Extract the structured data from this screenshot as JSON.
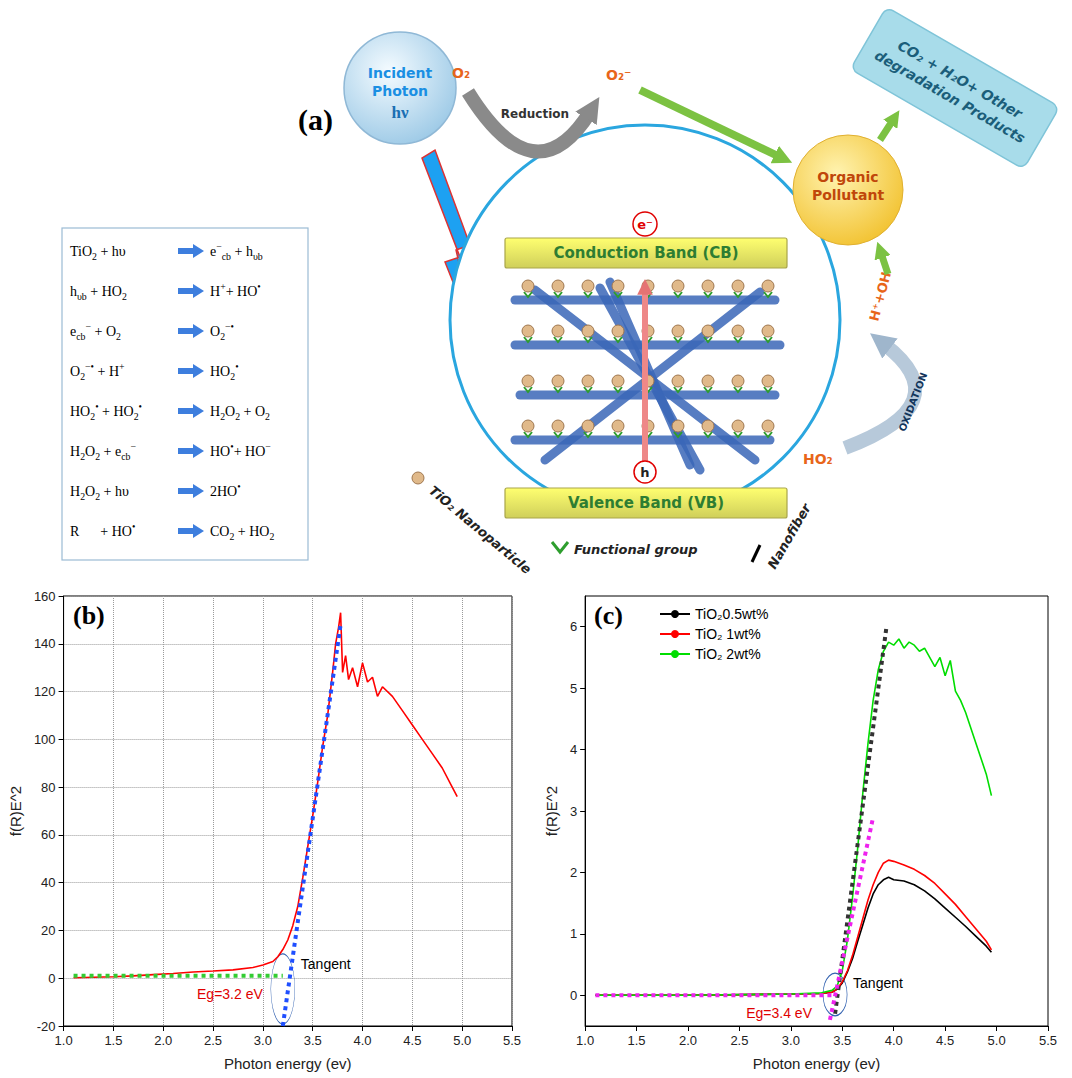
{
  "diagram": {
    "label": "(a)",
    "equations": [
      {
        "left": [
          {
            "t": "TiO"
          },
          {
            "sub": "2"
          },
          {
            "t": " + hυ"
          }
        ],
        "right": [
          {
            "t": "e"
          },
          {
            "sup": "−"
          },
          {
            "sub": "cb"
          },
          {
            "t": " + h"
          },
          {
            "sub": "υb"
          }
        ]
      },
      {
        "left": [
          {
            "t": "h"
          },
          {
            "sub": "υb"
          },
          {
            "t": " + HO"
          },
          {
            "sub": "2"
          }
        ],
        "right": [
          {
            "t": "H"
          },
          {
            "sup": "+"
          },
          {
            "t": "+ HO"
          },
          {
            "sup": "•"
          }
        ]
      },
      {
        "left": [
          {
            "t": "e"
          },
          {
            "sub": "cb"
          },
          {
            "sup": "−"
          },
          {
            "t": " + O"
          },
          {
            "sub": "2"
          }
        ],
        "right": [
          {
            "t": "O"
          },
          {
            "sub": "2"
          },
          {
            "sup": "−•"
          }
        ]
      },
      {
        "left": [
          {
            "t": "O"
          },
          {
            "sub": "2"
          },
          {
            "sup": "−•"
          },
          {
            "t": " + H"
          },
          {
            "sup": "+"
          }
        ],
        "right": [
          {
            "t": "HO"
          },
          {
            "sub": "2"
          },
          {
            "sup": "•"
          }
        ]
      },
      {
        "left": [
          {
            "t": "HO"
          },
          {
            "sub": "2"
          },
          {
            "sup": "•"
          },
          {
            "t": " + HO"
          },
          {
            "sub": "2"
          },
          {
            "sup": "•"
          }
        ],
        "right": [
          {
            "t": "H"
          },
          {
            "sub": "2"
          },
          {
            "t": "O"
          },
          {
            "sub": "2"
          },
          {
            "t": " + O"
          },
          {
            "sub": "2"
          }
        ]
      },
      {
        "left": [
          {
            "t": "H"
          },
          {
            "sub": "2"
          },
          {
            "t": "O"
          },
          {
            "sub": "2"
          },
          {
            "t": " + e"
          },
          {
            "sub": "cb"
          },
          {
            "sup": "−"
          }
        ],
        "right": [
          {
            "t": "HO"
          },
          {
            "sup": "•"
          },
          {
            "t": "+ HO"
          },
          {
            "sup": "−"
          }
        ]
      },
      {
        "left": [
          {
            "t": "H"
          },
          {
            "sub": "2"
          },
          {
            "t": "O"
          },
          {
            "sub": "2"
          },
          {
            "t": " + hυ"
          }
        ],
        "right": [
          {
            "t": "2HO"
          },
          {
            "sup": "•"
          }
        ]
      },
      {
        "left": [
          {
            "t": "R      + HO"
          },
          {
            "sup": "•"
          }
        ],
        "right": [
          {
            "t": "CO"
          },
          {
            "sub": "2"
          },
          {
            "t": " + HO"
          },
          {
            "sub": "2"
          }
        ]
      }
    ],
    "photon": {
      "title": "Incident Photon",
      "symbol": "hν"
    },
    "reduction": {
      "reactant": "O₂",
      "label": "Reduction",
      "product": "O₂⁻"
    },
    "electron": "e⁻",
    "hole": "h",
    "conduction_band": "Conduction Band (CB)",
    "valence_band": "Valence Band (VB)",
    "pollutant": "Organic Pollutant",
    "products": "CO₂ + H₂O+ Other degradation Products",
    "oxidation": {
      "reactant": "HO₂",
      "label": "OXIDATION",
      "product": "H⁺+OH"
    },
    "legend": {
      "nanoparticle": "TiO₂ Nanoparticle",
      "functional_group": "Functional group",
      "nanofiber": "Nanofiber"
    }
  },
  "chart_data": [
    {
      "type": "line",
      "panel": "(b)",
      "x_label": "Photon energy (ev)",
      "y_label": "f(R)E^2",
      "xlim": [
        1,
        5.5
      ],
      "xticks": [
        {
          "value": 1,
          "label": "1.0"
        },
        1.5,
        {
          "value": 2,
          "label": "2.0"
        },
        2.5,
        {
          "value": 3,
          "label": "3.0"
        },
        3.5,
        {
          "value": 4,
          "label": "4.0"
        },
        4.5,
        {
          "value": 5,
          "label": "5.0"
        },
        5.5
      ],
      "ylim": [
        -20,
        160
      ],
      "yticks": [
        -20,
        0,
        20,
        40,
        60,
        80,
        100,
        120,
        140,
        160
      ],
      "grid": true,
      "annotations": [
        "Tangent",
        "Eg=3.2 eV"
      ],
      "series": [
        {
          "color": "#ff0000",
          "line_style": "solid",
          "x": [
            1.1,
            1.3,
            1.5,
            1.7,
            1.9,
            2.1,
            2.3,
            2.5,
            2.7,
            2.9,
            3.0,
            3.1,
            3.15,
            3.2,
            3.25,
            3.3,
            3.35,
            3.4,
            3.45,
            3.5,
            3.55,
            3.6,
            3.65,
            3.7,
            3.73,
            3.76,
            3.78,
            3.8,
            3.83,
            3.86,
            3.9,
            3.95,
            4.0,
            4.05,
            4.1,
            4.15,
            4.2,
            4.3,
            4.4,
            4.5,
            4.6,
            4.7,
            4.8,
            4.9,
            4.95
          ],
          "values": [
            0.2,
            0.4,
            0.6,
            1,
            1.5,
            2,
            2.6,
            3,
            3.5,
            4.5,
            5.5,
            7,
            9,
            12,
            16,
            22,
            30,
            42,
            55,
            68,
            82,
            97,
            110,
            128,
            140,
            147,
            153,
            128,
            135,
            125,
            130,
            122,
            132,
            124,
            126,
            118,
            122,
            118,
            112,
            106,
            100,
            94,
            88,
            80,
            76
          ]
        },
        {
          "color": "#1f4fff",
          "line_style": "dotted",
          "x": [
            3.2,
            3.78
          ],
          "values": [
            -20,
            148
          ]
        },
        {
          "color": "#33cc33",
          "line_style": "dotted",
          "x": [
            1.1,
            3.2
          ],
          "values": [
            1,
            1
          ]
        }
      ]
    },
    {
      "type": "line",
      "panel": "(c)",
      "x_label": "Photon energy (ev)",
      "y_label": "f(R)E^2",
      "xlim": [
        1,
        5.5
      ],
      "xticks": [
        {
          "value": 1,
          "label": "1.0"
        },
        1.5,
        {
          "value": 2,
          "label": "2.0"
        },
        2.5,
        {
          "value": 3,
          "label": "3.0"
        },
        3.5,
        {
          "value": 4,
          "label": "4.0"
        },
        4.5,
        {
          "value": 5,
          "label": "5.0"
        },
        5.5
      ],
      "ylim": [
        -0.5,
        6.5
      ],
      "yticks": [
        0,
        1,
        2,
        3,
        4,
        5,
        6
      ],
      "grid": false,
      "legend": "upper left",
      "annotations": [
        "Tangent",
        "Eg=3.4 eV"
      ],
      "series": [
        {
          "name": "TiO₂0.5wt%",
          "color": "#000000",
          "line_style": "solid",
          "x": [
            1.1,
            2.0,
            3.0,
            3.3,
            3.4,
            3.45,
            3.5,
            3.55,
            3.6,
            3.65,
            3.7,
            3.75,
            3.8,
            3.85,
            3.9,
            3.95,
            4.0,
            4.1,
            4.2,
            4.3,
            4.4,
            4.5,
            4.6,
            4.7,
            4.8,
            4.9,
            4.95
          ],
          "values": [
            0,
            0,
            0.02,
            0.03,
            0.05,
            0.1,
            0.2,
            0.38,
            0.6,
            0.88,
            1.15,
            1.42,
            1.65,
            1.8,
            1.88,
            1.92,
            1.88,
            1.86,
            1.8,
            1.7,
            1.57,
            1.42,
            1.27,
            1.12,
            0.96,
            0.8,
            0.7
          ]
        },
        {
          "name": "TiO₂ 1wt%",
          "color": "#ff0000",
          "line_style": "solid",
          "x": [
            1.1,
            2.0,
            3.0,
            3.3,
            3.4,
            3.45,
            3.5,
            3.55,
            3.6,
            3.65,
            3.7,
            3.75,
            3.8,
            3.85,
            3.9,
            3.95,
            4.0,
            4.1,
            4.2,
            4.3,
            4.4,
            4.5,
            4.6,
            4.7,
            4.8,
            4.9,
            4.95
          ],
          "values": [
            0,
            0,
            0.02,
            0.03,
            0.05,
            0.1,
            0.22,
            0.4,
            0.65,
            0.95,
            1.25,
            1.55,
            1.8,
            2.0,
            2.15,
            2.2,
            2.18,
            2.12,
            2.05,
            1.95,
            1.82,
            1.65,
            1.48,
            1.28,
            1.08,
            0.88,
            0.74
          ]
        },
        {
          "name": "TiO₂ 2wt%",
          "color": "#00dd00",
          "line_style": "solid",
          "x": [
            1.1,
            2.0,
            3.0,
            3.3,
            3.4,
            3.45,
            3.5,
            3.55,
            3.6,
            3.65,
            3.7,
            3.75,
            3.8,
            3.85,
            3.9,
            3.95,
            4.0,
            4.05,
            4.1,
            4.15,
            4.2,
            4.25,
            4.3,
            4.35,
            4.4,
            4.45,
            4.5,
            4.55,
            4.6,
            4.65,
            4.7,
            4.8,
            4.9,
            4.95
          ],
          "values": [
            0,
            0,
            0.02,
            0.04,
            0.08,
            0.15,
            0.4,
            0.9,
            1.6,
            2.4,
            3.3,
            4.1,
            4.8,
            5.3,
            5.6,
            5.75,
            5.7,
            5.8,
            5.65,
            5.75,
            5.7,
            5.6,
            5.65,
            5.5,
            5.35,
            5.5,
            5.2,
            5.45,
            4.95,
            4.8,
            4.6,
            4.1,
            3.6,
            3.25
          ]
        },
        {
          "color": "#333333",
          "line_style": "dotted",
          "x": [
            3.43,
            3.93
          ],
          "values": [
            -0.3,
            6
          ]
        },
        {
          "color": "#ee22ee",
          "line_style": "dotted",
          "x": [
            3.38,
            3.8
          ],
          "values": [
            -0.4,
            2.9
          ]
        },
        {
          "color": "#ee22ee",
          "line_style": "dotted",
          "x": [
            1.1,
            3.4
          ],
          "values": [
            0,
            0
          ]
        }
      ]
    }
  ]
}
